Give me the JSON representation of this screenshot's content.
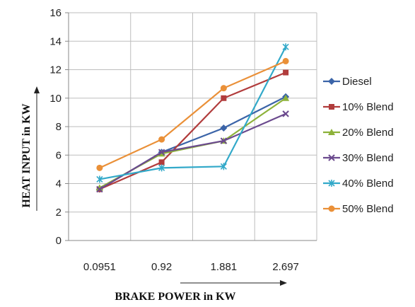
{
  "chart_data": {
    "type": "line",
    "title": "",
    "xlabel": "BRAKE POWER in KW",
    "ylabel": "HEAT INPUT in KW",
    "categories": [
      "0.0951",
      "0.92",
      "1.881",
      "2.697"
    ],
    "ylim": [
      0,
      16
    ],
    "yticks": [
      "0",
      "2",
      "4",
      "6",
      "8",
      "10",
      "12",
      "14",
      "16"
    ],
    "grid": true,
    "legend_position": "right",
    "series": [
      {
        "name": "Diesel",
        "values": [
          3.6,
          6.2,
          7.9,
          10.1
        ],
        "color": "#3b64a8",
        "marker": "diamond"
      },
      {
        "name": "10% Blend",
        "values": [
          3.6,
          5.5,
          10.0,
          11.8
        ],
        "color": "#b13c3c",
        "marker": "square"
      },
      {
        "name": "20% Blend",
        "values": [
          3.7,
          6.1,
          7.0,
          10.0
        ],
        "color": "#8db23a",
        "marker": "triangle"
      },
      {
        "name": "30% Blend",
        "values": [
          3.6,
          6.2,
          7.0,
          8.9
        ],
        "color": "#6b4a8e",
        "marker": "x"
      },
      {
        "name": "40% Blend",
        "values": [
          4.3,
          5.1,
          5.2,
          13.6
        ],
        "color": "#32a9c9",
        "marker": "star"
      },
      {
        "name": "50% Blend",
        "values": [
          5.1,
          7.1,
          10.7,
          12.6
        ],
        "color": "#ea9038",
        "marker": "circle"
      }
    ]
  }
}
